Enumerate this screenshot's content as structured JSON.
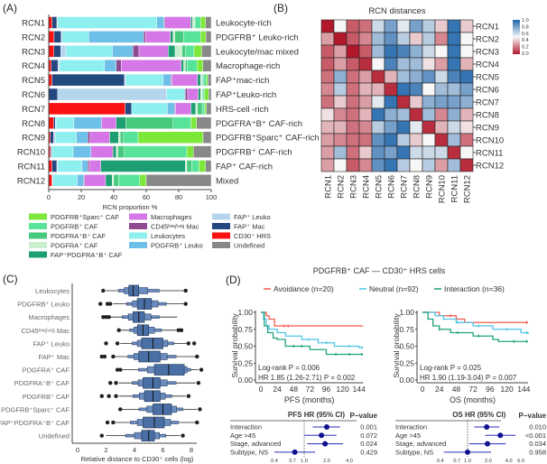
{
  "panel_labels": {
    "a": "(A)",
    "b": "(B)",
    "c": "(C)",
    "d": "(D)"
  },
  "panel_d": {
    "title": "PDGFRB⁺ CAF — CD30⁺ HRS cells",
    "legend": [
      {
        "label": "Avoidance (n=20)",
        "color": "#f4594e"
      },
      {
        "label": "Neutral (n=92)",
        "color": "#4fc3e6"
      },
      {
        "label": "Interaction (n=36)",
        "color": "#1fa37e"
      }
    ]
  },
  "chart_data": [
    {
      "id": "A",
      "type": "bar",
      "orientation": "horizontal-stacked",
      "xlabel": "RCN proportion %",
      "xlim": [
        0,
        100
      ],
      "xticks": [
        "0",
        "20",
        "40",
        "60",
        "80",
        "100"
      ],
      "categories": [
        "RCN1",
        "RCN2",
        "RCN3",
        "RCN4",
        "RCN5",
        "RCN6",
        "RCN7",
        "RCN8",
        "RCN9",
        "RCN10",
        "RCN11",
        "RCN12"
      ],
      "row_annotations": [
        "Leukocyte-rich",
        "PDGFRB⁺ Leuko-rich",
        "Leukocyte/mac mixed",
        "Macrophage-rich",
        "FAP⁺mac-rich",
        "FAP⁺Leuko-rich",
        "HRS-cell -rich",
        "PDGFRA⁺B⁺ CAF-rich",
        "PDGFRB⁺Sparc⁺ CAF-rich",
        "PDGFRB⁺ CAF-rich",
        "FAP⁺ CAF-rich",
        "Mixed"
      ],
      "legend": [
        {
          "name": "PDGFRB⁺Sparc⁺ CAF",
          "color": "#7ee83a"
        },
        {
          "name": "PDGFRB⁺ CAF",
          "color": "#57e39a"
        },
        {
          "name": "PDGFRA⁺B⁺ CAF",
          "color": "#47c97e"
        },
        {
          "name": "PDGFRA⁺ CAF",
          "color": "#c9efcf"
        },
        {
          "name": "FAP⁺PDGFRA⁺B⁺ CAF",
          "color": "#1e9e73"
        },
        {
          "name": "Macrophages",
          "color": "#d577e6"
        },
        {
          "name": "CD45ˡᵒʷ/ⁿᵉᵍ Mac",
          "color": "#8e4a91"
        },
        {
          "name": "Leukocytes",
          "color": "#8ef0ee"
        },
        {
          "name": "PDGFRB⁺ Leuko",
          "color": "#6fc0e8"
        },
        {
          "name": "FAP⁺ Leuko",
          "color": "#b5d5ec"
        },
        {
          "name": "FAP⁺ Mac",
          "color": "#23477f"
        },
        {
          "name": "CD30⁺ HRS",
          "color": "#fa1010"
        },
        {
          "name": "Undefined",
          "color": "#888888"
        }
      ],
      "stack_order": [
        11,
        10,
        9,
        7,
        8,
        6,
        5,
        4,
        3,
        2,
        1,
        0,
        12
      ],
      "values": [
        [
          2,
          3,
          0.5,
          61,
          4.5,
          0.5,
          16,
          1,
          1.5,
          0,
          3.5,
          3,
          3.5
        ],
        [
          3,
          4,
          0.5,
          15,
          31,
          1,
          14,
          1.5,
          1,
          5,
          9.5,
          3,
          3
        ],
        [
          3,
          4,
          3,
          27,
          12,
          3.5,
          17,
          4,
          4,
          2,
          5,
          4.5,
          5.5
        ],
        [
          1.5,
          4,
          1,
          27,
          7,
          3,
          36,
          1.5,
          1,
          1,
          6,
          3.5,
          5
        ],
        [
          2,
          45,
          1,
          23,
          5,
          0.5,
          16,
          2,
          1,
          0.5,
          2,
          1,
          2
        ],
        [
          0,
          5.5,
          67,
          11,
          0.5,
          1.5,
          6.5,
          1.5,
          1,
          0.5,
          1,
          2.5,
          1.5
        ],
        [
          47,
          4,
          0,
          22,
          4.5,
          0.5,
          9.5,
          3,
          1,
          3,
          1.5,
          1,
          3
        ],
        [
          3,
          1,
          0.5,
          11,
          17,
          0,
          9,
          6,
          0,
          29,
          11,
          3.5,
          9
        ],
        [
          1,
          2,
          1,
          13,
          7,
          1.5,
          12,
          5.5,
          1,
          2,
          9,
          40,
          5
        ],
        [
          1,
          0.5,
          0.5,
          13,
          11,
          0,
          13.5,
          2,
          1,
          4,
          38.5,
          4,
          11
        ],
        [
          2,
          3,
          0.5,
          15,
          3.5,
          1,
          7,
          52,
          1,
          3,
          4.5,
          4,
          3.5
        ],
        [
          2,
          0,
          0.5,
          15,
          4,
          0.5,
          13,
          4,
          1,
          3,
          13,
          4,
          40
        ]
      ]
    },
    {
      "id": "B",
      "type": "heatmap",
      "title": "RCN distances",
      "rows": [
        "RCN1",
        "RCN2",
        "RCN3",
        "RCN4",
        "RCN5",
        "RCN6",
        "RCN7",
        "RCN8",
        "RCN9",
        "RCN10",
        "RCN11",
        "RCN12"
      ],
      "cols": [
        "RCN1",
        "RCN2",
        "RCN3",
        "RCN4",
        "RCN5",
        "RCN6",
        "RCN7",
        "RCN8",
        "RCN9",
        "RCN10",
        "RCN11",
        "RCN12"
      ],
      "colorbar_ticks": [
        "1.0",
        "0.8",
        "0.6",
        "0.4",
        "0.2",
        "0.0"
      ],
      "colorscale": [
        "#b2182b",
        "#f7f7f7",
        "#2166ac"
      ],
      "zlim": [
        0,
        1
      ],
      "values": [
        [
          0.0,
          0.5,
          0.15,
          0.2,
          0.6,
          0.8,
          0.55,
          0.8,
          0.65,
          0.4,
          0.95,
          0.4
        ],
        [
          0.3,
          0.0,
          0.15,
          0.25,
          0.7,
          0.85,
          0.65,
          0.4,
          0.65,
          0.25,
          0.95,
          0.5
        ],
        [
          0.15,
          0.3,
          0.0,
          0.15,
          0.7,
          0.95,
          0.9,
          0.75,
          0.6,
          0.5,
          0.95,
          0.5
        ],
        [
          0.15,
          0.3,
          0.15,
          0.05,
          0.5,
          0.9,
          0.7,
          0.7,
          0.45,
          0.3,
          0.95,
          0.35
        ],
        [
          0.2,
          0.75,
          0.2,
          0.3,
          0.05,
          0.35,
          0.7,
          0.75,
          0.85,
          0.6,
          0.9,
          0.95
        ],
        [
          0.25,
          0.65,
          0.2,
          0.35,
          0.35,
          0.05,
          0.95,
          0.9,
          0.5,
          0.7,
          0.7,
          0.8
        ],
        [
          0.2,
          0.4,
          0.2,
          0.3,
          0.55,
          0.95,
          0.05,
          0.4,
          0.75,
          0.8,
          0.8,
          0.75
        ],
        [
          0.45,
          0.25,
          0.2,
          0.35,
          0.95,
          0.75,
          0.7,
          0.05,
          0.7,
          0.25,
          0.75,
          0.35
        ],
        [
          0.35,
          0.35,
          0.2,
          0.25,
          0.65,
          0.8,
          0.95,
          0.55,
          0.05,
          0.35,
          0.6,
          0.45
        ],
        [
          0.3,
          0.25,
          0.2,
          0.2,
          0.85,
          0.95,
          0.65,
          0.4,
          0.5,
          0.05,
          0.7,
          0.2
        ],
        [
          0.3,
          0.7,
          0.2,
          0.4,
          0.85,
          0.8,
          0.95,
          0.6,
          0.6,
          0.6,
          0.05,
          0.5
        ],
        [
          0.3,
          0.5,
          0.15,
          0.25,
          0.85,
          0.95,
          0.65,
          0.5,
          0.65,
          0.3,
          0.7,
          0.05
        ]
      ]
    },
    {
      "id": "C",
      "type": "boxplot",
      "xlabel": "Relative distance to CD30⁺ cells (log)",
      "xlim": [
        0,
        8.5
      ],
      "xticks": [
        "0",
        "2",
        "4",
        "6",
        "8"
      ],
      "box_color": "#4a6fa5",
      "series": [
        {
          "name": "Leukocytes",
          "median": 3.9,
          "q1": 3.6,
          "q3": 4.3,
          "whisker_low": 2.0,
          "whisker_high": 7.5,
          "outliers": [
            1.8,
            7.6
          ]
        },
        {
          "name": "PDGFRB⁺ Leuko",
          "median": 4.7,
          "q1": 4.2,
          "q3": 5.2,
          "whisker_low": 2.5,
          "whisker_high": 7.5,
          "outliers": [
            1.6,
            2.1,
            2.3,
            7.6
          ]
        },
        {
          "name": "Macrophages",
          "median": 4.3,
          "q1": 3.9,
          "q3": 4.7,
          "whisker_low": 2.2,
          "whisker_high": 7.0,
          "outliers": [
            1.8,
            2.0,
            2.2
          ]
        },
        {
          "name": "CD45ˡᵒʷ/ⁿᵉᵍ Mac",
          "median": 4.6,
          "q1": 4.2,
          "q3": 5.0,
          "whisker_low": 3.0,
          "whisker_high": 7.0,
          "outliers": [
            2.9,
            7.1,
            7.3
          ]
        },
        {
          "name": "FAP⁺ Leuko",
          "median": 5.3,
          "q1": 4.5,
          "q3": 6.0,
          "whisker_low": 3.0,
          "whisker_high": 7.7,
          "outliers": [
            2.0,
            2.8,
            7.8,
            8.2
          ]
        },
        {
          "name": "FAP⁺ Mac",
          "median": 5.0,
          "q1": 4.3,
          "q3": 5.8,
          "whisker_low": 2.6,
          "whisker_high": 8.3,
          "outliers": [
            1.7,
            1.9,
            2.5,
            8.4
          ]
        },
        {
          "name": "PDGFRA⁺ CAF",
          "median": 6.4,
          "q1": 5.4,
          "q3": 7.5,
          "whisker_low": 2.9,
          "whisker_high": 8.5,
          "outliers": [
            2.8,
            3.0,
            8.7
          ]
        },
        {
          "name": "PDGFRA⁺B⁺ CAF",
          "median": 5.3,
          "q1": 4.6,
          "q3": 5.8,
          "whisker_low": 2.9,
          "whisker_high": 8.3,
          "outliers": [
            2.3,
            2.7,
            8.5
          ]
        },
        {
          "name": "PDGFRB⁺ CAF",
          "median": 5.3,
          "q1": 4.7,
          "q3": 5.8,
          "whisker_low": 2.9,
          "whisker_high": 7.6,
          "outliers": [
            1.7,
            2.2,
            2.7,
            7.8
          ]
        },
        {
          "name": "PDGFRB⁺Sparc⁺ CAF",
          "median": 6.0,
          "q1": 5.3,
          "q3": 6.6,
          "whisker_low": 3.1,
          "whisker_high": 8.4,
          "outliers": [
            3.0,
            8.6
          ]
        },
        {
          "name": "FAP⁺PDGFRA⁺B⁺ CAF",
          "median": 5.4,
          "q1": 4.6,
          "q3": 6.1,
          "whisker_low": 2.6,
          "whisker_high": 8.3,
          "outliers": [
            2.1,
            2.5,
            8.4
          ]
        },
        {
          "name": "Undefined",
          "median": 5.0,
          "q1": 4.5,
          "q3": 5.4,
          "whisker_low": 2.0,
          "whisker_high": 7.2,
          "outliers": [
            1.7,
            7.4
          ]
        }
      ]
    },
    {
      "id": "D-PFS",
      "type": "line",
      "subtype": "kaplan-meier",
      "xlabel": "PFS (months)",
      "ylabel": "Survival probability",
      "xlim": [
        0,
        150
      ],
      "ylim": [
        0,
        1
      ],
      "xticks": [
        "0",
        "24",
        "48",
        "72",
        "96",
        "120",
        "144"
      ],
      "yticks": [
        "0.00",
        "0.25",
        "0.50",
        "0.75",
        "1.00"
      ],
      "annotations": [
        "Log-rank P = 0.006",
        "HR 1.85 (1.26-2.71) P = 0.002"
      ],
      "series": [
        {
          "name": "Avoidance",
          "points": [
            [
              0,
              1
            ],
            [
              8,
              0.95
            ],
            [
              12,
              0.9
            ],
            [
              20,
              0.8
            ],
            [
              150,
              0.8
            ]
          ],
          "censor": [
            34,
            40
          ]
        },
        {
          "name": "Neutral",
          "points": [
            [
              0,
              1
            ],
            [
              4,
              0.9
            ],
            [
              8,
              0.8
            ],
            [
              12,
              0.75
            ],
            [
              24,
              0.7
            ],
            [
              36,
              0.65
            ],
            [
              60,
              0.6
            ],
            [
              84,
              0.55
            ],
            [
              108,
              0.5
            ],
            [
              144,
              0.48
            ],
            [
              150,
              0.48
            ]
          ],
          "censor": [
            70,
            96,
            130,
            148
          ]
        },
        {
          "name": "Interaction",
          "points": [
            [
              0,
              1
            ],
            [
              5,
              0.8
            ],
            [
              10,
              0.7
            ],
            [
              18,
              0.62
            ],
            [
              24,
              0.6
            ],
            [
              36,
              0.5
            ],
            [
              72,
              0.45
            ],
            [
              96,
              0.38
            ],
            [
              150,
              0.38
            ]
          ],
          "censor": [
            48,
            60,
            110,
            130,
            148
          ]
        }
      ]
    },
    {
      "id": "D-OS",
      "type": "line",
      "subtype": "kaplan-meier",
      "xlabel": "OS (months)",
      "ylabel": "Survival probability",
      "xlim": [
        0,
        150
      ],
      "ylim": [
        0,
        1
      ],
      "xticks": [
        "0",
        "24",
        "48",
        "72",
        "96",
        "120",
        "144"
      ],
      "yticks": [
        "0.00",
        "0.25",
        "0.50",
        "0.75",
        "1.00"
      ],
      "annotations": [
        "Log-rank P = 0.025",
        "HR 1.90 (1.19-3.04) P = 0.007"
      ],
      "series": [
        {
          "name": "Avoidance",
          "points": [
            [
              0,
              1
            ],
            [
              24,
              0.95
            ],
            [
              48,
              0.9
            ],
            [
              60,
              0.85
            ],
            [
              150,
              0.85
            ]
          ],
          "censor": [
            40,
            148
          ]
        },
        {
          "name": "Neutral",
          "points": [
            [
              0,
              1
            ],
            [
              18,
              0.95
            ],
            [
              30,
              0.9
            ],
            [
              48,
              0.85
            ],
            [
              72,
              0.8
            ],
            [
              100,
              0.75
            ],
            [
              140,
              0.7
            ],
            [
              150,
              0.68
            ]
          ],
          "censor": [
            50,
            80,
            120,
            148
          ]
        },
        {
          "name": "Interaction",
          "points": [
            [
              0,
              1
            ],
            [
              8,
              0.9
            ],
            [
              15,
              0.8
            ],
            [
              24,
              0.75
            ],
            [
              40,
              0.7
            ],
            [
              72,
              0.65
            ],
            [
              100,
              0.6
            ],
            [
              108,
              0.57
            ],
            [
              150,
              0.57
            ]
          ],
          "censor": [
            24,
            50,
            80,
            130,
            148
          ]
        }
      ]
    },
    {
      "id": "D-PFS-forest",
      "type": "scatter",
      "subtype": "forest",
      "header": "PFS HR (95% CI)",
      "pvalue_header": "P−value",
      "xscale": "log",
      "xticks": [
        "0.4",
        "0.7",
        "1.0",
        "2.0",
        "4.0"
      ],
      "rows": [
        {
          "label": "Interaction",
          "hr": 2.0,
          "lo": 1.3,
          "hi": 3.0,
          "p": "0.001"
        },
        {
          "label": "Age >45",
          "hr": 1.7,
          "lo": 1.0,
          "hi": 2.7,
          "p": "0.072"
        },
        {
          "label": "Stage, advanced",
          "hr": 1.9,
          "lo": 1.1,
          "hi": 3.3,
          "p": "0.024"
        },
        {
          "label": "Subtype, NS",
          "hr": 0.75,
          "lo": 0.4,
          "hi": 1.4,
          "p": "0.429"
        }
      ]
    },
    {
      "id": "D-OS-forest",
      "type": "scatter",
      "subtype": "forest",
      "header": "OS HR (95% CI)",
      "pvalue_header": "P−value",
      "xscale": "log",
      "xticks": [
        "0.4",
        "0.7",
        "1.0",
        "2.0",
        "4.0",
        "6.0"
      ],
      "rows": [
        {
          "label": "Interaction",
          "hr": 1.9,
          "lo": 1.25,
          "hi": 2.9,
          "p": "0.010"
        },
        {
          "label": "Age >45",
          "hr": 3.0,
          "lo": 1.8,
          "hi": 5.0,
          "p": "<0.001"
        },
        {
          "label": "Stage, advanced",
          "hr": 1.95,
          "lo": 1.05,
          "hi": 3.6,
          "p": "0.034"
        },
        {
          "label": "Subtype, NS",
          "hr": 1.0,
          "lo": 0.45,
          "hi": 2.2,
          "p": "0.958"
        }
      ]
    }
  ]
}
